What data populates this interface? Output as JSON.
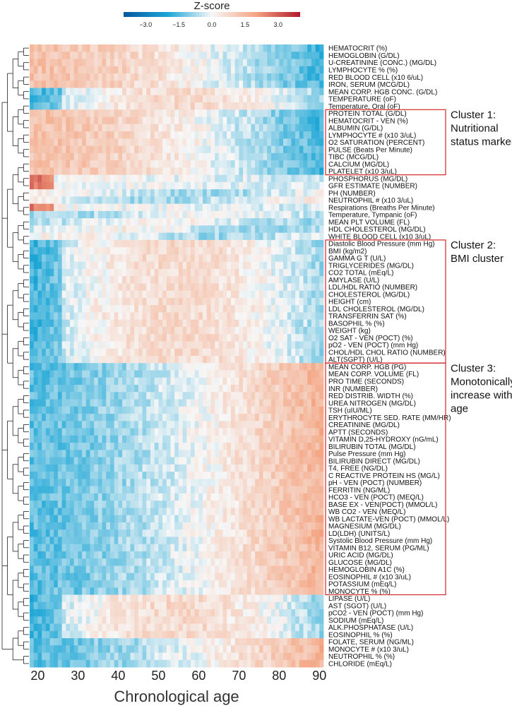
{
  "chart_data": {
    "type": "heatmap",
    "colorbar": {
      "title": "Z-score",
      "range": [
        -4,
        4
      ],
      "ticks": [
        {
          "value": -3,
          "label": "−3.0"
        },
        {
          "value": -1.5,
          "label": "−1.5"
        },
        {
          "value": 0,
          "label": "0.0"
        },
        {
          "value": 1.5,
          "label": "1.5"
        },
        {
          "value": 3,
          "label": "3.0"
        }
      ],
      "colors": [
        "#08589e",
        "#1ca6d6",
        "#f7f7f7",
        "#f4a582",
        "#b2182b"
      ]
    },
    "xlabel": "Chronological age",
    "xlim": [
      18,
      91
    ],
    "x_ticks": [
      20,
      30,
      40,
      50,
      60,
      70,
      80,
      90
    ],
    "rows": [
      {
        "name": "HEMATOCRIT (%)",
        "profile": "dec"
      },
      {
        "name": "HEMOGLOBIN (G/DL)",
        "profile": "dec"
      },
      {
        "name": "U-CREATININE (CONC.) (MG/DL)",
        "profile": "dec"
      },
      {
        "name": "LYMPHOCYTE % (%)",
        "profile": "dec"
      },
      {
        "name": "RED BLOOD CELL (x10 6/uL)",
        "profile": "dec"
      },
      {
        "name": "IRON, SERUM (MCG/DL)",
        "profile": "dec"
      },
      {
        "name": "MEAN CORP. HGB CONC. (G/DL)",
        "profile": "mid"
      },
      {
        "name": "TEMPERATURE (oF)",
        "profile": "mid"
      },
      {
        "name": "Temperature, Oral (oF)",
        "profile": "mid"
      },
      {
        "name": "PROTEIN TOTAL (G/DL)",
        "profile": "dec"
      },
      {
        "name": "HEMATOCRIT - VEN (%)",
        "profile": "dec"
      },
      {
        "name": "ALBUMIN (G/DL)",
        "profile": "dec"
      },
      {
        "name": "LYMPHOCYTE # (x10 3/uL)",
        "profile": "dec"
      },
      {
        "name": "O2 SATURATION (PERCENT)",
        "profile": "dec"
      },
      {
        "name": "PULSE (Beats Per Minute)",
        "profile": "dec"
      },
      {
        "name": "TIBC (MCG/DL)",
        "profile": "dec"
      },
      {
        "name": "CALCIUM (MG/DL)",
        "profile": "dec"
      },
      {
        "name": "PLATELET (x10 3/uL)",
        "profile": "dec"
      },
      {
        "name": "PHOSPHORUS (MG/DL)",
        "profile": "earlyhigh"
      },
      {
        "name": "GFR ESTIMATE (NUMBER)",
        "profile": "earlyhigh"
      },
      {
        "name": "PH (NUMBER)",
        "profile": "flat"
      },
      {
        "name": "NEUTROPHIL # (x10 3/uL)",
        "profile": "flat"
      },
      {
        "name": "Respirations (Breaths Per Minute)",
        "profile": "earlyhigh"
      },
      {
        "name": "Temperature, Tympanic (oF)",
        "profile": "flat"
      },
      {
        "name": "MEAN PLT VOLUME (FL)",
        "profile": "flat"
      },
      {
        "name": "HDL CHOLESTEROL (MG/DL)",
        "profile": "flat"
      },
      {
        "name": "WHITE BLOOD CELL (x10 3/uL)",
        "profile": "flat"
      },
      {
        "name": "Diastolic Blood Pressure (mm Hg)",
        "profile": "mid"
      },
      {
        "name": "BMI (kg/m2)",
        "profile": "mid"
      },
      {
        "name": "GAMMA G T (U/L)",
        "profile": "mid"
      },
      {
        "name": "TRIGLYCERIDES (MG/DL)",
        "profile": "mid"
      },
      {
        "name": "CO2 TOTAL (mEq/L)",
        "profile": "mid"
      },
      {
        "name": "AMYLASE (U/L)",
        "profile": "mid"
      },
      {
        "name": "LDL/HDL RATIO (NUMBER)",
        "profile": "mid"
      },
      {
        "name": "CHOLESTEROL (MG/DL)",
        "profile": "mid"
      },
      {
        "name": "HEIGHT (cm)",
        "profile": "mid"
      },
      {
        "name": "LDL CHOLESTEROL (MG/DL)",
        "profile": "mid"
      },
      {
        "name": "TRANSFERRIN SAT (%)",
        "profile": "mid"
      },
      {
        "name": "BASOPHIL % (%)",
        "profile": "mid"
      },
      {
        "name": "WEIGHT (kg)",
        "profile": "mid"
      },
      {
        "name": "O2 SAT - VEN (POCT) (%)",
        "profile": "mid"
      },
      {
        "name": "pO2 - VEN (POCT) (mm Hg)",
        "profile": "mid"
      },
      {
        "name": "CHOL/HDL CHOL RATIO (NUMBER)",
        "profile": "mid"
      },
      {
        "name": "ALT(SGPT) (U/L)",
        "profile": "mid"
      },
      {
        "name": "MEAN CORP. HGB (PG)",
        "profile": "inc"
      },
      {
        "name": "MEAN CORP. VOLUME (FL)",
        "profile": "inc"
      },
      {
        "name": "PRO TIME (SECONDS)",
        "profile": "inc"
      },
      {
        "name": "INR (NUMBER)",
        "profile": "inc"
      },
      {
        "name": "RED DISTRIB. WIDTH (%)",
        "profile": "inc"
      },
      {
        "name": "UREA NITROGEN (MG/DL)",
        "profile": "inc"
      },
      {
        "name": "TSH (uIU/ML)",
        "profile": "inc"
      },
      {
        "name": "ERYTHROCYTE SED. RATE (MM/HR)",
        "profile": "inc"
      },
      {
        "name": "CREATININE (MG/DL)",
        "profile": "inc"
      },
      {
        "name": "APTT (SECONDS)",
        "profile": "inc"
      },
      {
        "name": "VITAMIN D,25-HYDROXY (nG/mL)",
        "profile": "inc"
      },
      {
        "name": "BILIRUBIN TOTAL (MG/DL)",
        "profile": "inc"
      },
      {
        "name": "Pulse Pressure (mm Hg)",
        "profile": "inc"
      },
      {
        "name": "BILIRUBIN DIRECT (MG/DL)",
        "profile": "inc"
      },
      {
        "name": "T4, FREE (NG/DL)",
        "profile": "inc"
      },
      {
        "name": "C REACTIVE PROTEIN HS (MG/L)",
        "profile": "inc"
      },
      {
        "name": "pH - VEN (POCT) (NUMBER)",
        "profile": "inc"
      },
      {
        "name": "FERRITIN (NG/ML)",
        "profile": "inc"
      },
      {
        "name": "HCO3 - VEN (POCT) (MEQ/L)",
        "profile": "inc"
      },
      {
        "name": "BASE EX - VEN(POCT) (MMOL/L)",
        "profile": "inc"
      },
      {
        "name": "WB CO2 - VEN (MEQ/L)",
        "profile": "inc"
      },
      {
        "name": "WB LACTATE-VEN (POCT) (MMOL/L)",
        "profile": "inc"
      },
      {
        "name": "MAGNESIUM (MG/DL)",
        "profile": "inc"
      },
      {
        "name": "LD(LDH) (UNITS/L)",
        "profile": "inc"
      },
      {
        "name": "Systolic Blood Pressure (mm Hg)",
        "profile": "inc"
      },
      {
        "name": "VITAMIN B12, SERUM (PG/ML)",
        "profile": "inc"
      },
      {
        "name": "URIC ACID (MG/DL)",
        "profile": "inc"
      },
      {
        "name": "GLUCOSE (MG/DL)",
        "profile": "inc"
      },
      {
        "name": "HEMOGLOBIN A1C (%)",
        "profile": "inc"
      },
      {
        "name": "EOSINOPHIL # (x10 3/uL)",
        "profile": "inc"
      },
      {
        "name": "POTASSIUM (mEq/L)",
        "profile": "inc"
      },
      {
        "name": "MONOCYTE % (%)",
        "profile": "inc"
      },
      {
        "name": "LIPASE (U/L)",
        "profile": "mid"
      },
      {
        "name": "AST (SGOT) (U/L)",
        "profile": "mid"
      },
      {
        "name": "pCO2 - VEN (POCT) (mm Hg)",
        "profile": "mid"
      },
      {
        "name": "SODIUM (mEq/L)",
        "profile": "mid"
      },
      {
        "name": "ALK.PHOSPHATASE (U/L)",
        "profile": "mid"
      },
      {
        "name": "EOSINOPHIL % (%)",
        "profile": "mid"
      },
      {
        "name": "FOLATE, SERUM (NG/ML)",
        "profile": "inc"
      },
      {
        "name": "MONOCYTE # (x10 3/uL)",
        "profile": "inc"
      },
      {
        "name": "NEUTROPHIL % (%)",
        "profile": "inc"
      },
      {
        "name": "CHLORIDE (mEq/L)",
        "profile": "inc"
      }
    ],
    "clusters": [
      {
        "label_lines": [
          "Cluster 1:",
          "Nutritional",
          "status markers"
        ],
        "first_row": 9,
        "last_row": 17
      },
      {
        "label_lines": [
          "Cluster 2:",
          "BMI cluster"
        ],
        "first_row": 27,
        "last_row": 43
      },
      {
        "label_lines": [
          "Cluster 3:",
          "Monotonically",
          "increase with",
          "age"
        ],
        "first_row": 44,
        "last_row": 75
      }
    ]
  }
}
